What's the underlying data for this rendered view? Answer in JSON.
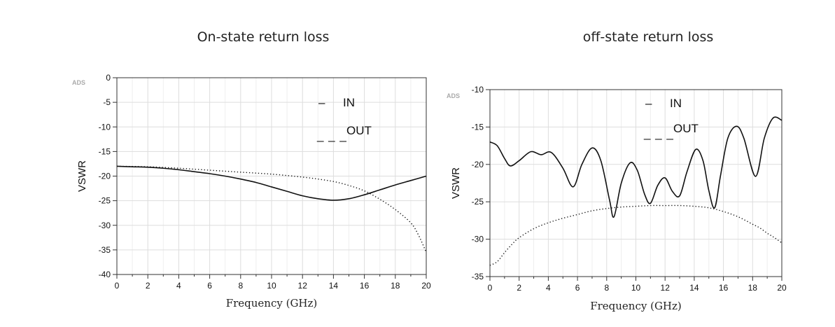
{
  "chart_data": [
    {
      "type": "line",
      "title": "On-state return loss",
      "xlabel": "Frequency (GHz)",
      "ylabel": "VSWR",
      "xlim": [
        0,
        20
      ],
      "ylim": [
        -40,
        0
      ],
      "xticks": [
        "0",
        "2",
        "4",
        "6",
        "8",
        "10",
        "12",
        "14",
        "16",
        "18",
        "20"
      ],
      "yticks": [
        "0",
        "-5",
        "-10",
        "-15",
        "-20",
        "-25",
        "-30",
        "-35",
        "-40"
      ],
      "watermark": "ADS",
      "legend": {
        "placement": "top-right",
        "entries": [
          {
            "marker": "–",
            "label": "IN"
          },
          {
            "marker": "_ _ _",
            "label": "OUT"
          }
        ]
      },
      "grid": true,
      "series": [
        {
          "name": "IN",
          "style": "solid",
          "x": [
            0,
            1,
            2,
            3,
            4,
            5,
            6,
            7,
            8,
            9,
            10,
            11,
            12,
            13,
            14,
            15,
            16,
            17,
            18,
            19,
            20
          ],
          "y": [
            -18,
            -18.1,
            -18.2,
            -18.4,
            -18.7,
            -19.1,
            -19.5,
            -20,
            -20.6,
            -21.3,
            -22.2,
            -23.1,
            -24,
            -24.6,
            -24.9,
            -24.6,
            -23.8,
            -22.8,
            -21.8,
            -20.9,
            -20
          ]
        },
        {
          "name": "OUT",
          "style": "dotted",
          "x": [
            0,
            2,
            4,
            6,
            8,
            10,
            12,
            13,
            14,
            15,
            16,
            17,
            18,
            19,
            19.5,
            20
          ],
          "y": [
            -18,
            -18.1,
            -18.4,
            -18.8,
            -19.2,
            -19.6,
            -20.2,
            -20.6,
            -21.1,
            -21.9,
            -23,
            -24.7,
            -26.8,
            -29.5,
            -32,
            -35.5
          ]
        }
      ]
    },
    {
      "type": "line",
      "title": "off-state return loss",
      "xlabel": "Frequency (GHz)",
      "ylabel": "VSWR",
      "xlim": [
        0,
        20
      ],
      "ylim": [
        -35,
        -10
      ],
      "xticks": [
        "0",
        "2",
        "4",
        "6",
        "8",
        "10",
        "12",
        "14",
        "16",
        "18",
        "20"
      ],
      "yticks": [
        "-10",
        "-15",
        "-20",
        "-25",
        "-30",
        "-35"
      ],
      "watermark": "ADS",
      "legend": {
        "placement": "top-right",
        "entries": [
          {
            "marker": "–",
            "label": "IN"
          },
          {
            "marker": "_ _ _",
            "label": "OUT"
          }
        ]
      },
      "grid": true,
      "series": [
        {
          "name": "IN",
          "style": "solid",
          "x": [
            0,
            0.5,
            1,
            1.4,
            2,
            2.8,
            3.5,
            4.2,
            5,
            5.7,
            6.3,
            7.0,
            7.6,
            8.2,
            8.5,
            9.0,
            9.6,
            10.1,
            10.6,
            11.0,
            11.5,
            12,
            12.5,
            13,
            13.5,
            14.1,
            14.6,
            15.0,
            15.4,
            15.8,
            16.3,
            16.9,
            17.4,
            18.2,
            18.8,
            19.4,
            20
          ],
          "y": [
            -17,
            -17.5,
            -19.2,
            -20.2,
            -19.5,
            -18.3,
            -18.7,
            -18.4,
            -20.5,
            -23,
            -20,
            -17.8,
            -19.5,
            -24.8,
            -27,
            -22.5,
            -19.8,
            -20.8,
            -24,
            -25.2,
            -22.8,
            -21.8,
            -23.6,
            -24.2,
            -21,
            -18,
            -19.5,
            -23.5,
            -25.8,
            -21.5,
            -16.5,
            -14.9,
            -16.5,
            -21.6,
            -16.5,
            -13.8,
            -14.1
          ]
        },
        {
          "name": "OUT",
          "style": "dotted",
          "x": [
            0,
            0.5,
            1,
            1.5,
            2,
            3,
            4,
            5,
            6,
            7,
            8,
            9,
            10,
            11,
            12,
            13,
            14,
            15,
            16,
            17,
            18,
            18.5,
            19,
            19.5,
            20
          ],
          "y": [
            -33.5,
            -33,
            -31.8,
            -30.7,
            -29.8,
            -28.6,
            -27.8,
            -27.2,
            -26.7,
            -26.2,
            -25.9,
            -25.7,
            -25.6,
            -25.5,
            -25.5,
            -25.5,
            -25.6,
            -25.8,
            -26.3,
            -27,
            -28,
            -28.5,
            -29.2,
            -29.8,
            -30.5
          ]
        }
      ]
    }
  ]
}
